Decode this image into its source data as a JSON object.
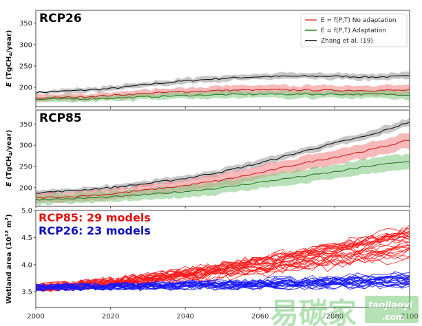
{
  "chart_data": [
    {
      "type": "line",
      "title": "RCP26",
      "ylabel": "E (TgCH4/year)",
      "xlabel": "",
      "xlim": [
        2000,
        2100
      ],
      "ylim": [
        155,
        380
      ],
      "yticks": [
        200,
        250,
        300,
        350
      ],
      "legend": {
        "placement": "top-right",
        "entries": [
          {
            "label": "E = f(P,T) No adaptation",
            "color": "#e03030"
          },
          {
            "label": "E = f(P,T) Adaptation",
            "color": "#2a8a2a"
          },
          {
            "label": "Zhang et al. (19)",
            "color": "#111111"
          }
        ]
      },
      "x": [
        2000,
        2010,
        2020,
        2030,
        2040,
        2050,
        2060,
        2070,
        2080,
        2090,
        2100
      ],
      "series": [
        {
          "name": "Zhang et al. (19)",
          "color": "#111111",
          "band_color": "#999999",
          "values": [
            188,
            192,
            197,
            207,
            215,
            221,
            225,
            226,
            226,
            224,
            226
          ],
          "band": 8
        },
        {
          "name": "E = f(P,T) No adaptation",
          "color": "#c82020",
          "band_color": "#f08080",
          "values": [
            175,
            177,
            181,
            186,
            190,
            193,
            194,
            194,
            193,
            193,
            193
          ],
          "band": 12
        },
        {
          "name": "E = f(P,T) Adaptation",
          "color": "#2a7a2a",
          "band_color": "#80c880",
          "values": [
            172,
            173,
            175,
            178,
            181,
            183,
            184,
            184,
            184,
            184,
            183
          ],
          "band": 10
        }
      ]
    },
    {
      "type": "line",
      "title": "RCP85",
      "ylabel": "E (TgCH4/year)",
      "xlabel": "",
      "xlim": [
        2000,
        2100
      ],
      "ylim": [
        156,
        383
      ],
      "yticks": [
        200,
        250,
        300,
        350
      ],
      "x": [
        2000,
        2010,
        2020,
        2030,
        2040,
        2050,
        2060,
        2070,
        2080,
        2090,
        2100
      ],
      "series": [
        {
          "name": "Zhang et al. (19)",
          "color": "#111111",
          "band_color": "#999999",
          "values": [
            188,
            193,
            200,
            210,
            222,
            238,
            258,
            282,
            305,
            325,
            355
          ],
          "band": 9
        },
        {
          "name": "E = f(P,T) No adaptation",
          "color": "#c82020",
          "band_color": "#f08080",
          "values": [
            176,
            179,
            185,
            195,
            205,
            218,
            235,
            255,
            272,
            290,
            312
          ],
          "band": 18
        },
        {
          "name": "E = f(P,T) Adaptation",
          "color": "#2a7a2a",
          "band_color": "#80c880",
          "values": [
            172,
            174,
            178,
            184,
            191,
            200,
            213,
            225,
            237,
            252,
            262
          ],
          "band": 18
        }
      ]
    },
    {
      "type": "line",
      "title": "",
      "ylabel": "Wetland area (10^12 m^2)",
      "xlabel": "",
      "xlim": [
        2000,
        2100
      ],
      "ylim": [
        3.21,
        5.0
      ],
      "yticks": [
        3.5,
        4.0,
        4.5,
        5.0
      ],
      "xticks": [
        2000,
        2020,
        2040,
        2060,
        2080,
        2100
      ],
      "annotations": [
        {
          "text": "RCP85: 29 models",
          "color": "#e01010"
        },
        {
          "text": "RCP26: 23 models",
          "color": "#1010c0"
        }
      ],
      "ensembles": [
        {
          "name": "RCP85",
          "color": "#ff1a1a",
          "n_models": 29,
          "start": 3.58,
          "end_mean": 4.4,
          "end_spread": 0.3,
          "noise": 0.09
        },
        {
          "name": "RCP26",
          "color": "#1a1aff",
          "n_models": 23,
          "start": 3.58,
          "end_mean": 3.72,
          "end_spread": 0.12,
          "noise": 0.07
        }
      ]
    }
  ],
  "watermark": {
    "cn": "易碳家",
    "en": "tanjiaoyi",
    "domain": ".com"
  }
}
